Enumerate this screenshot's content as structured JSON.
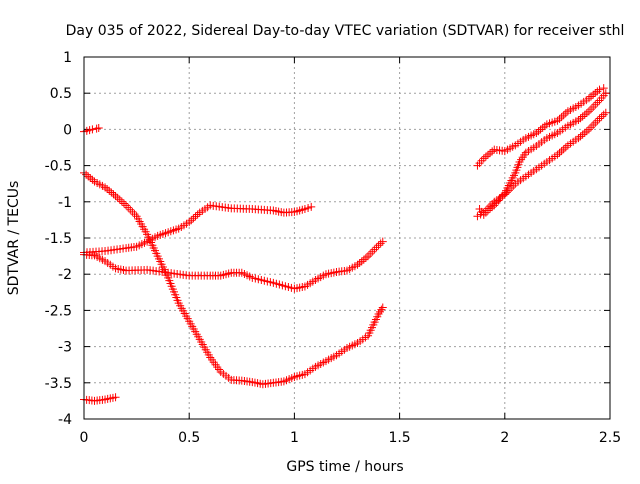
{
  "chart_data": {
    "type": "scatter",
    "title": "Day 035 of 2022, Sidereal Day-to-day VTEC variation (SDTVAR) for receiver sthl",
    "xlabel": "GPS time / hours",
    "ylabel": "SDTVAR / TECUs",
    "xlim": [
      0,
      2.5
    ],
    "ylim": [
      -4,
      1
    ],
    "xticks": [
      {
        "value": 0,
        "label": "0"
      },
      {
        "value": 0.5,
        "label": "0.5"
      },
      {
        "value": 1,
        "label": "1"
      },
      {
        "value": 1.5,
        "label": "1.5"
      },
      {
        "value": 2,
        "label": "2"
      },
      {
        "value": 2.5,
        "label": "2.5"
      }
    ],
    "yticks": [
      {
        "value": 1,
        "label": "1"
      },
      {
        "value": 0.5,
        "label": "0.5"
      },
      {
        "value": 0,
        "label": "0"
      },
      {
        "value": -0.5,
        "label": "-0.5"
      },
      {
        "value": -1,
        "label": "-1"
      },
      {
        "value": -1.5,
        "label": "-1.5"
      },
      {
        "value": -2,
        "label": "-2"
      },
      {
        "value": -2.5,
        "label": "-2.5"
      },
      {
        "value": -3,
        "label": "-3"
      },
      {
        "value": -3.5,
        "label": "-3.5"
      },
      {
        "value": -4,
        "label": "-4"
      }
    ],
    "grid": true,
    "marker": "+",
    "color": "#ff0000",
    "series": [
      {
        "points": [
          [
            0,
            -0.03
          ],
          [
            0.04,
            0.0
          ],
          [
            0.06,
            0.01
          ],
          [
            0.07,
            0.02
          ]
        ]
      },
      {
        "points": [
          [
            0,
            -3.73
          ],
          [
            0.05,
            -3.75
          ],
          [
            0.1,
            -3.73
          ],
          [
            0.15,
            -3.7
          ]
        ]
      },
      {
        "points": [
          [
            0,
            -1.7
          ],
          [
            0.1,
            -1.68
          ],
          [
            0.2,
            -1.64
          ],
          [
            0.25,
            -1.62
          ],
          [
            0.3,
            -1.55
          ],
          [
            0.35,
            -1.47
          ],
          [
            0.4,
            -1.42
          ],
          [
            0.45,
            -1.37
          ],
          [
            0.5,
            -1.28
          ],
          [
            0.55,
            -1.15
          ],
          [
            0.6,
            -1.05
          ],
          [
            0.7,
            -1.09
          ],
          [
            0.8,
            -1.1
          ],
          [
            0.9,
            -1.12
          ],
          [
            0.95,
            -1.15
          ],
          [
            1.0,
            -1.14
          ],
          [
            1.05,
            -1.1
          ],
          [
            1.08,
            -1.07
          ]
        ]
      },
      {
        "points": [
          [
            0,
            -1.73
          ],
          [
            0.05,
            -1.74
          ],
          [
            0.1,
            -1.82
          ],
          [
            0.15,
            -1.92
          ],
          [
            0.2,
            -1.95
          ],
          [
            0.3,
            -1.94
          ],
          [
            0.4,
            -1.98
          ],
          [
            0.5,
            -2.02
          ],
          [
            0.6,
            -2.02
          ],
          [
            0.65,
            -2.02
          ],
          [
            0.7,
            -1.98
          ],
          [
            0.75,
            -1.98
          ],
          [
            0.8,
            -2.05
          ],
          [
            0.9,
            -2.12
          ],
          [
            1.0,
            -2.2
          ],
          [
            1.05,
            -2.17
          ],
          [
            1.1,
            -2.08
          ],
          [
            1.15,
            -2.0
          ],
          [
            1.2,
            -1.97
          ],
          [
            1.25,
            -1.95
          ],
          [
            1.3,
            -1.87
          ],
          [
            1.35,
            -1.75
          ],
          [
            1.4,
            -1.6
          ],
          [
            1.42,
            -1.55
          ]
        ]
      },
      {
        "points": [
          [
            0,
            -0.6
          ],
          [
            0.05,
            -0.72
          ],
          [
            0.1,
            -0.8
          ],
          [
            0.15,
            -0.92
          ],
          [
            0.2,
            -1.05
          ],
          [
            0.25,
            -1.2
          ],
          [
            0.3,
            -1.45
          ],
          [
            0.35,
            -1.75
          ],
          [
            0.4,
            -2.05
          ],
          [
            0.45,
            -2.4
          ],
          [
            0.5,
            -2.65
          ],
          [
            0.55,
            -2.9
          ],
          [
            0.6,
            -3.15
          ],
          [
            0.65,
            -3.35
          ],
          [
            0.7,
            -3.46
          ],
          [
            0.75,
            -3.47
          ],
          [
            0.8,
            -3.49
          ],
          [
            0.85,
            -3.52
          ],
          [
            0.9,
            -3.5
          ],
          [
            0.95,
            -3.48
          ],
          [
            1.0,
            -3.42
          ],
          [
            1.05,
            -3.38
          ],
          [
            1.1,
            -3.28
          ],
          [
            1.15,
            -3.2
          ],
          [
            1.2,
            -3.12
          ],
          [
            1.25,
            -3.02
          ],
          [
            1.3,
            -2.95
          ],
          [
            1.35,
            -2.85
          ],
          [
            1.4,
            -2.55
          ],
          [
            1.42,
            -2.46
          ]
        ]
      },
      {
        "points": [
          [
            1.87,
            -0.5
          ],
          [
            1.9,
            -0.4
          ],
          [
            1.95,
            -0.28
          ],
          [
            2.0,
            -0.3
          ],
          [
            2.05,
            -0.22
          ],
          [
            2.1,
            -0.12
          ],
          [
            2.15,
            -0.05
          ],
          [
            2.2,
            0.07
          ],
          [
            2.25,
            0.12
          ],
          [
            2.3,
            0.25
          ],
          [
            2.35,
            0.33
          ],
          [
            2.4,
            0.43
          ],
          [
            2.45,
            0.55
          ],
          [
            2.47,
            0.57
          ]
        ]
      },
      {
        "points": [
          [
            1.88,
            -1.1
          ],
          [
            1.9,
            -1.18
          ],
          [
            1.92,
            -1.12
          ],
          [
            1.95,
            -1.05
          ],
          [
            2.0,
            -0.88
          ],
          [
            2.05,
            -0.6
          ],
          [
            2.07,
            -0.45
          ],
          [
            2.1,
            -0.32
          ],
          [
            2.15,
            -0.23
          ],
          [
            2.2,
            -0.12
          ],
          [
            2.25,
            -0.05
          ],
          [
            2.3,
            0.05
          ],
          [
            2.35,
            0.13
          ],
          [
            2.4,
            0.25
          ],
          [
            2.45,
            0.4
          ],
          [
            2.48,
            0.5
          ]
        ]
      },
      {
        "points": [
          [
            1.87,
            -1.2
          ],
          [
            1.9,
            -1.15
          ],
          [
            1.95,
            -1.0
          ],
          [
            2.0,
            -0.9
          ],
          [
            2.05,
            -0.75
          ],
          [
            2.1,
            -0.65
          ],
          [
            2.15,
            -0.55
          ],
          [
            2.2,
            -0.45
          ],
          [
            2.25,
            -0.35
          ],
          [
            2.3,
            -0.22
          ],
          [
            2.35,
            -0.12
          ],
          [
            2.4,
            0.0
          ],
          [
            2.45,
            0.15
          ],
          [
            2.48,
            0.23
          ]
        ]
      }
    ]
  }
}
